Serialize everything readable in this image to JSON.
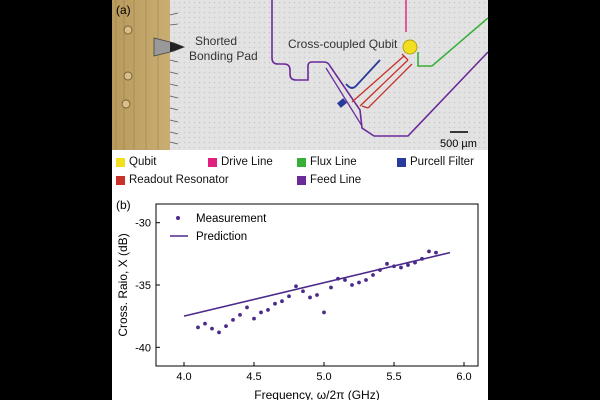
{
  "panel_a": {
    "label": "(a)",
    "annotations": {
      "bonding_pad": [
        "Shorted",
        "Bonding Pad"
      ],
      "qubit": "Cross-coupled Qubit",
      "scale_bar": "500 µm"
    },
    "legend": [
      {
        "label": "Qubit",
        "color": "#f2df1f"
      },
      {
        "label": "Drive Line",
        "color": "#e0207f"
      },
      {
        "label": "Flux Line",
        "color": "#3aae3a"
      },
      {
        "label": "Purcell Filter",
        "color": "#2a3a9a"
      },
      {
        "label": "Readout Resonator",
        "color": "#c8302a"
      },
      {
        "label": "Feed Line",
        "color": "#6a2a9a"
      }
    ]
  },
  "panel_b": {
    "label": "(b)",
    "chart_data": {
      "type": "scatter",
      "xlabel": "Frequency, ω/2π (GHz)",
      "ylabel": "Cross. Raio, X (dB)",
      "xlim": [
        3.8,
        6.1
      ],
      "ylim": [
        -41.5,
        -28.5
      ],
      "xticks": [
        "4.0",
        "4.5",
        "5.0",
        "5.5",
        "6.0"
      ],
      "yticks": [
        "-30",
        "-35",
        "-40"
      ],
      "xtick_values": [
        4.0,
        4.5,
        5.0,
        5.5,
        6.0
      ],
      "ytick_values": [
        -30,
        -35,
        -40
      ],
      "color": "#4b2a8a",
      "series": [
        {
          "name": "Measurement",
          "kind": "points",
          "x": [
            4.1,
            4.15,
            4.2,
            4.25,
            4.3,
            4.35,
            4.4,
            4.45,
            4.5,
            4.55,
            4.6,
            4.65,
            4.7,
            4.75,
            4.8,
            4.85,
            4.9,
            4.95,
            5.0,
            5.05,
            5.1,
            5.15,
            5.2,
            5.25,
            5.3,
            5.35,
            5.4,
            5.45,
            5.5,
            5.55,
            5.6,
            5.65,
            5.7,
            5.75,
            5.8
          ],
          "y": [
            -38.4,
            -38.1,
            -38.5,
            -38.8,
            -38.3,
            -37.8,
            -37.4,
            -36.8,
            -37.7,
            -37.2,
            -37.0,
            -36.5,
            -36.3,
            -35.9,
            -35.1,
            -35.5,
            -36.0,
            -35.8,
            -37.2,
            -35.2,
            -34.5,
            -34.6,
            -35.0,
            -34.8,
            -34.6,
            -34.2,
            -33.8,
            -33.3,
            -33.5,
            -33.6,
            -33.4,
            -33.2,
            -32.9,
            -32.3,
            -32.4
          ]
        },
        {
          "name": "Prediction",
          "kind": "line",
          "x": [
            4.0,
            5.9
          ],
          "y": [
            -37.5,
            -32.4
          ]
        }
      ]
    }
  }
}
